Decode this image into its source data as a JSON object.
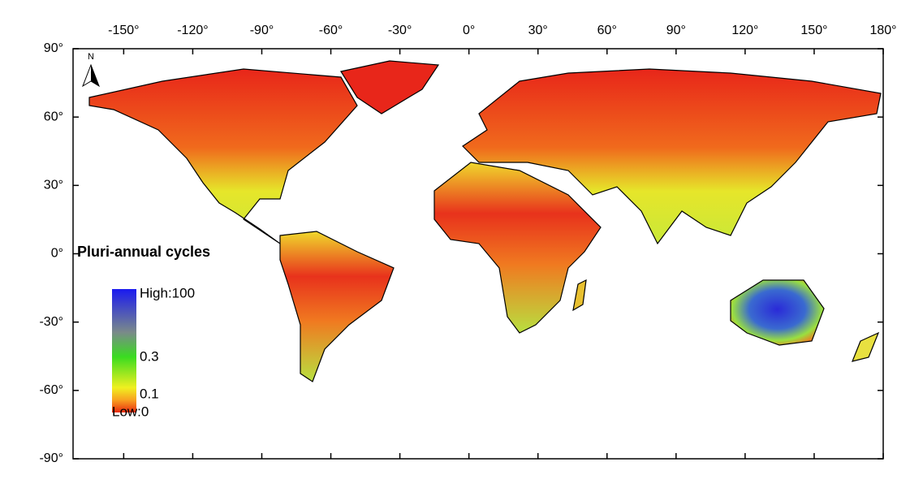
{
  "map": {
    "title": "Pluri-annual cycles",
    "north": "N",
    "xlim": [
      -172,
      180
    ],
    "ylim": [
      -90,
      90
    ],
    "xticks": [
      {
        "value": -150,
        "label": "-150°"
      },
      {
        "value": -120,
        "label": "-120°"
      },
      {
        "value": -90,
        "label": "-90°"
      },
      {
        "value": -60,
        "label": "-60°"
      },
      {
        "value": -30,
        "label": "-30°"
      },
      {
        "value": 0,
        "label": "0°"
      },
      {
        "value": 30,
        "label": "30°"
      },
      {
        "value": 60,
        "label": "60°"
      },
      {
        "value": 90,
        "label": "90°"
      },
      {
        "value": 120,
        "label": "120°"
      },
      {
        "value": 150,
        "label": "150°"
      },
      {
        "value": 180,
        "label": "180°"
      }
    ],
    "yticks": [
      {
        "value": 90,
        "label": "90°"
      },
      {
        "value": 60,
        "label": "60°"
      },
      {
        "value": 30,
        "label": "30°"
      },
      {
        "value": 0,
        "label": "0°"
      },
      {
        "value": -30,
        "label": "-30°"
      },
      {
        "value": -60,
        "label": "-60°"
      },
      {
        "value": -90,
        "label": "-90°"
      }
    ],
    "legend": {
      "high": "High:100",
      "mid": "0.3",
      "low_mid": "0.1",
      "low": "Low:0"
    }
  }
}
